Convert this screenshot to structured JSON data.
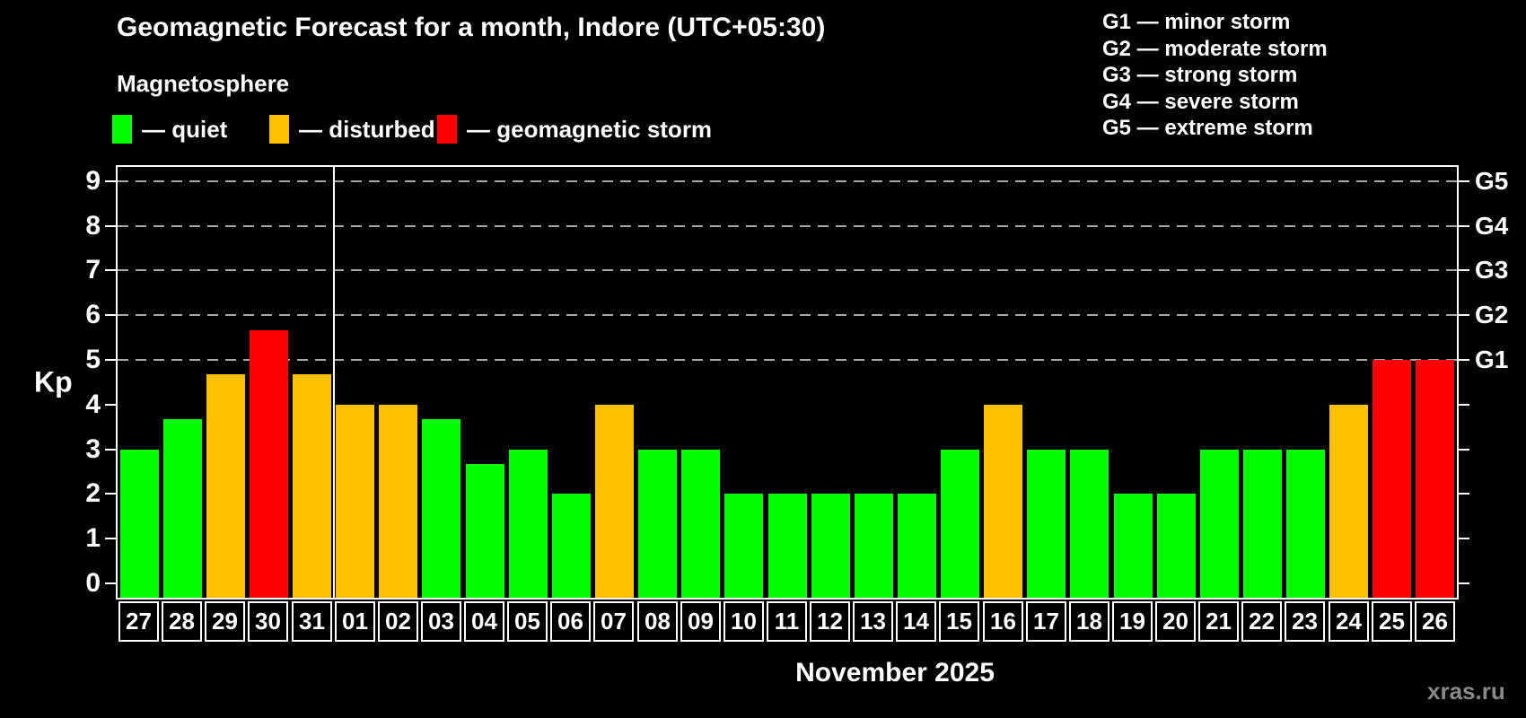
{
  "header": {
    "title": "Geomagnetic Forecast for a month, Indore (UTC+05:30)",
    "subtitle": "Magnetosphere",
    "watermark": "xras.ru"
  },
  "legend": {
    "items": [
      {
        "key": "quiet",
        "label": "— quiet",
        "color": "#00ff00"
      },
      {
        "key": "disturbed",
        "label": "— disturbed",
        "color": "#ffc000"
      },
      {
        "key": "storm",
        "label": "— geomagnetic storm",
        "color": "#ff0000"
      }
    ]
  },
  "g_legend": {
    "items": [
      "G1 — minor storm",
      "G2 — moderate storm",
      "G3 — strong storm",
      "G4 — severe storm",
      "G5 — extreme storm"
    ]
  },
  "chart_data": {
    "type": "bar",
    "title": "Geomagnetic Forecast for a month, Indore (UTC+05:30)",
    "subtitle": "Magnetosphere",
    "ylabel": "Kp",
    "xlabel": "November 2025",
    "ylim": [
      0,
      9
    ],
    "yticks": [
      0,
      1,
      2,
      3,
      4,
      5,
      6,
      7,
      8,
      9
    ],
    "gridline_kps": [
      5,
      6,
      7,
      8,
      9
    ],
    "grid_style": "dashed horizontal lines at Kp 5-9 only",
    "legend_position": "top-left swatches; G-scale legend top-right",
    "right_axis": [
      {
        "label": "G1",
        "kp": 5
      },
      {
        "label": "G2",
        "kp": 6
      },
      {
        "label": "G3",
        "kp": 7
      },
      {
        "label": "G4",
        "kp": 8
      },
      {
        "label": "G5",
        "kp": 9
      }
    ],
    "categories": [
      "27",
      "28",
      "29",
      "30",
      "31",
      "01",
      "02",
      "03",
      "04",
      "05",
      "06",
      "07",
      "08",
      "09",
      "10",
      "11",
      "12",
      "13",
      "14",
      "15",
      "16",
      "17",
      "18",
      "19",
      "20",
      "21",
      "22",
      "23",
      "24",
      "25",
      "26"
    ],
    "values": [
      3,
      3.67,
      4.67,
      5.67,
      4.67,
      4,
      4,
      3.67,
      2.67,
      3,
      2,
      4,
      3,
      3,
      2,
      2,
      2,
      2,
      2,
      3,
      4,
      3,
      3,
      2,
      2,
      3,
      3,
      3,
      4,
      5,
      5
    ],
    "status": [
      "quiet",
      "quiet",
      "disturbed",
      "storm",
      "disturbed",
      "disturbed",
      "disturbed",
      "quiet",
      "quiet",
      "quiet",
      "quiet",
      "disturbed",
      "quiet",
      "quiet",
      "quiet",
      "quiet",
      "quiet",
      "quiet",
      "quiet",
      "quiet",
      "disturbed",
      "quiet",
      "quiet",
      "quiet",
      "quiet",
      "quiet",
      "quiet",
      "quiet",
      "disturbed",
      "storm",
      "storm"
    ],
    "colors": {
      "quiet": "#00ff00",
      "disturbed": "#ffc000",
      "storm": "#ff0000"
    },
    "month_separator_after_index": 4,
    "month_separator_note": "white vertical line between 31 (previous month) and 01"
  }
}
